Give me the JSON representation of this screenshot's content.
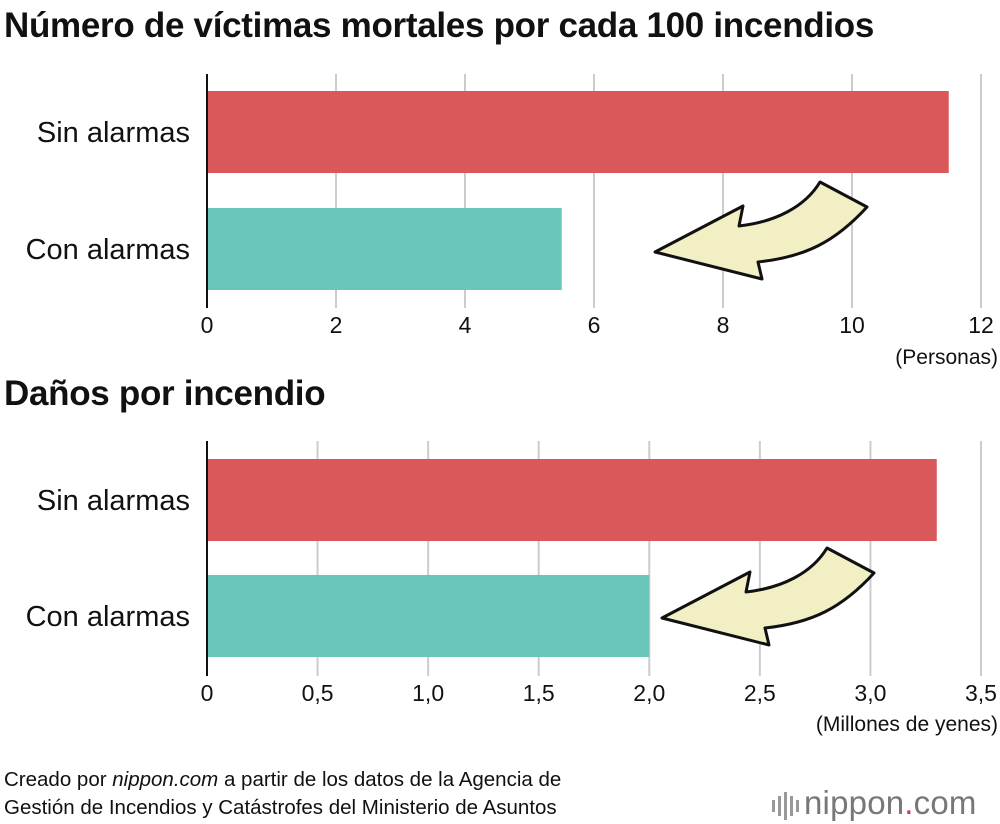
{
  "chart_data": [
    {
      "type": "bar",
      "orientation": "horizontal",
      "title": "Número de víctimas mortales por cada 100 incendios",
      "categories": [
        "Sin alarmas",
        "Con alarmas"
      ],
      "values": [
        11.5,
        5.5
      ],
      "colors": [
        "#d9585a",
        "#6bc6ba"
      ],
      "xlim": [
        0,
        12
      ],
      "ticks": [
        "0",
        "2",
        "4",
        "6",
        "8",
        "10",
        "12"
      ],
      "tick_values": [
        0,
        2,
        4,
        6,
        8,
        10,
        12
      ],
      "unit": "(Personas)",
      "grid": true
    },
    {
      "type": "bar",
      "orientation": "horizontal",
      "title": "Daños por incendio",
      "categories": [
        "Sin alarmas",
        "Con alarmas"
      ],
      "values": [
        3.3,
        2.0
      ],
      "colors": [
        "#d9585a",
        "#6bc6ba"
      ],
      "xlim": [
        0,
        3.5
      ],
      "ticks": [
        "0",
        "0,5",
        "1,0",
        "1,5",
        "2,0",
        "2,5",
        "3,0",
        "3,5"
      ],
      "tick_values": [
        0,
        0.5,
        1.0,
        1.5,
        2.0,
        2.5,
        3.0,
        3.5
      ],
      "unit": "(Millones de yenes)",
      "grid": true
    }
  ],
  "footer": {
    "prefix": "Creado por ",
    "source_italic": "nippon.com",
    "rest_line1": " a partir de los datos de la Agencia de",
    "line2": "Gestión de Incendios y Catástrofes del  Ministerio de Asuntos"
  },
  "logo": {
    "name": "nippon",
    "dot": ".",
    "suffix": "com"
  },
  "colors": {
    "arrow_fill": "#f2efc4",
    "grid": "#cccccc"
  }
}
